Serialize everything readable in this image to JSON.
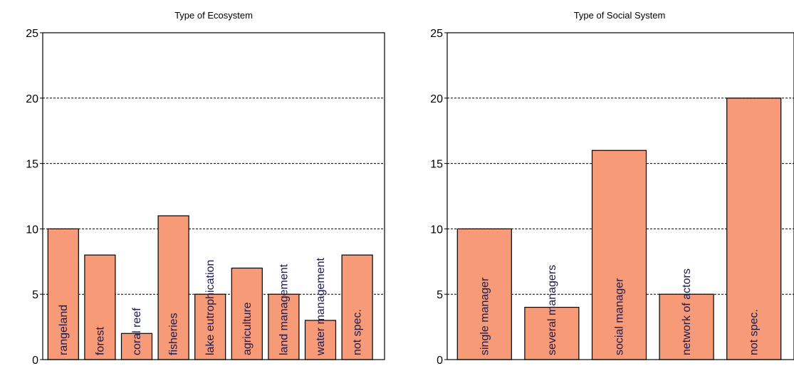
{
  "chart_data": [
    {
      "type": "bar",
      "title": "Type of Ecosystem",
      "categories": [
        "rangeland",
        "forest",
        "coral reef",
        "fisheries",
        "lake eutrophication",
        "agriculture",
        "land management",
        "water management",
        "not spec."
      ],
      "values": [
        10,
        8,
        2,
        11,
        5,
        7,
        5,
        3,
        8
      ],
      "ylim": [
        0,
        25
      ],
      "yticks": [
        0,
        5,
        10,
        15,
        20,
        25
      ],
      "grid": true,
      "bar_color": "#f79a78"
    },
    {
      "type": "bar",
      "title": "Type of Social System",
      "categories": [
        "single manager",
        "several managers",
        "social manager",
        "network of actors",
        "not spec."
      ],
      "values": [
        10,
        4,
        16,
        5,
        20
      ],
      "ylim": [
        0,
        25
      ],
      "yticks": [
        0,
        5,
        10,
        15,
        20,
        25
      ],
      "grid": true,
      "bar_color": "#f79a78"
    }
  ]
}
